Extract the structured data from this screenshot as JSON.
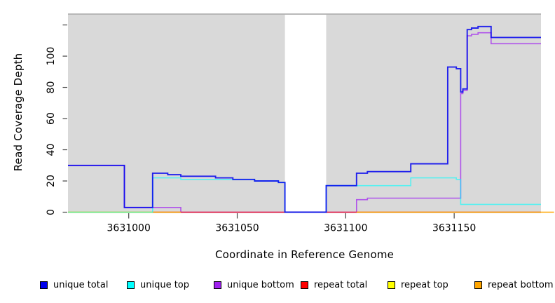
{
  "chart_data": {
    "type": "line",
    "subtype": "step",
    "title": "",
    "xlabel": "Coordinate in Reference Genome",
    "ylabel": "Read Coverage Depth",
    "xlim": [
      3630972,
      3631190
    ],
    "ylim": [
      0,
      127
    ],
    "xticks": [
      {
        "v": 3631000,
        "label": "3631000"
      },
      {
        "v": 3631050,
        "label": "3631050"
      },
      {
        "v": 3631100,
        "label": "3631100"
      },
      {
        "v": 3631150,
        "label": "3631150"
      }
    ],
    "yticks": [
      {
        "v": 0,
        "label": "0"
      },
      {
        "v": 20,
        "label": "20"
      },
      {
        "v": 40,
        "label": "40"
      },
      {
        "v": 60,
        "label": "60"
      },
      {
        "v": 80,
        "label": "80"
      },
      {
        "v": 100,
        "label": "100"
      },
      {
        "v": 120,
        "label": ""
      }
    ],
    "plot": {
      "bg": "#d9d9d9",
      "gap_region": {
        "from": 3631072,
        "to": 3631091
      },
      "top_border_color": "#9c9c9c",
      "tick_color": "#444444"
    },
    "legend": [
      {
        "label": "unique total",
        "color": "#0000ee"
      },
      {
        "label": "unique top",
        "color": "#00ffff"
      },
      {
        "label": "unique bottom",
        "color": "#a020f0"
      },
      {
        "label": "repeat total",
        "color": "#ff0000"
      },
      {
        "label": "repeat top",
        "color": "#ffff00"
      },
      {
        "label": "repeat bottom",
        "color": "#ffa500"
      }
    ],
    "series": [
      {
        "name": "unique bottom",
        "color": "#a020f0",
        "opacity": 0.72,
        "width": 1.6,
        "segments": [
          {
            "points": [
              [
                3630972,
                30
              ],
              [
                3630998,
                3
              ],
              [
                3631024,
                0
              ],
              [
                3631105,
                8
              ],
              [
                3631110,
                9
              ],
              [
                3631153,
                76
              ],
              [
                3631154,
                78
              ],
              [
                3631156,
                113
              ],
              [
                3631158,
                114
              ],
              [
                3631161,
                115
              ],
              [
                3631167,
                108
              ]
            ],
            "end": 3631190
          }
        ]
      },
      {
        "name": "repeat total",
        "color": "#ff0000",
        "opacity": 0.75,
        "width": 1.5,
        "segments": [
          {
            "points": [
              [
                3630972,
                0
              ]
            ],
            "end": 3631190
          }
        ]
      },
      {
        "name": "repeat top",
        "color": "#ffff00",
        "opacity": 1.0,
        "width": 1.5,
        "segments": [
          {
            "points": [
              [
                3630972,
                0
              ]
            ],
            "end": 3631011
          }
        ]
      },
      {
        "name": "repeat bottom",
        "color": "#ffa500",
        "opacity": 1.0,
        "width": 1.6,
        "segments": [
          {
            "points": [
              [
                3631011,
                0
              ]
            ],
            "end": 3631024
          },
          {
            "points": [
              [
                3631105,
                0
              ]
            ],
            "end": 3631196
          }
        ]
      },
      {
        "name": "unique top",
        "color": "#00ffff",
        "opacity": 0.6,
        "width": 1.6,
        "segments": [
          {
            "points": [
              [
                3630972,
                0
              ],
              [
                3631011,
                22
              ],
              [
                3631024,
                21
              ],
              [
                3631058,
                20
              ],
              [
                3631069,
                19
              ],
              [
                3631072,
                0
              ],
              [
                3631091,
                17
              ],
              [
                3631130,
                22
              ],
              [
                3631151,
                21
              ],
              [
                3631153,
                5
              ]
            ],
            "end": 3631190
          }
        ]
      },
      {
        "name": "unique total",
        "color": "#0000ee",
        "opacity": 0.85,
        "width": 1.9,
        "segments": [
          {
            "points": [
              [
                3630972,
                30
              ],
              [
                3630998,
                3
              ],
              [
                3631011,
                25
              ],
              [
                3631018,
                24
              ],
              [
                3631024,
                23
              ],
              [
                3631040,
                22
              ],
              [
                3631048,
                21
              ],
              [
                3631058,
                20
              ],
              [
                3631069,
                19
              ],
              [
                3631072,
                0
              ],
              [
                3631091,
                17
              ],
              [
                3631105,
                25
              ],
              [
                3631110,
                26
              ],
              [
                3631130,
                31
              ],
              [
                3631147,
                93
              ],
              [
                3631151,
                92
              ],
              [
                3631153,
                77
              ],
              [
                3631154,
                79
              ],
              [
                3631156,
                117
              ],
              [
                3631158,
                118
              ],
              [
                3631161,
                119
              ],
              [
                3631167,
                112
              ]
            ],
            "end": 3631190
          }
        ]
      }
    ]
  }
}
